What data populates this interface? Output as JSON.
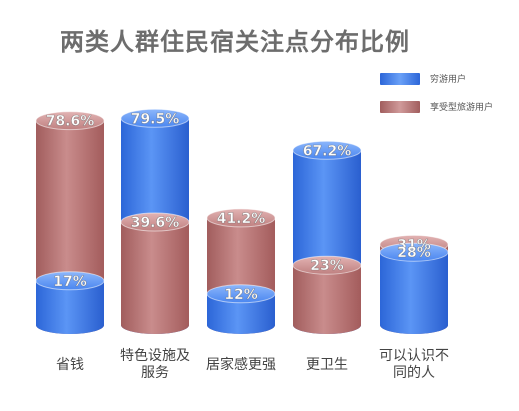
{
  "chart_data": {
    "type": "bar",
    "title": "两类人群住民宿关注点分布比例",
    "categories": [
      "省钱",
      "特色设施及服务",
      "居家感更强",
      "更卫生",
      "可以认识不同的人"
    ],
    "category_lines": [
      [
        "省钱"
      ],
      [
        "特色设施及",
        "服务"
      ],
      [
        "居家感更强"
      ],
      [
        "更卫生"
      ],
      [
        "可以认识不",
        "同的人"
      ]
    ],
    "series": [
      {
        "name": "穷游用户",
        "values": [
          17,
          79.5,
          12,
          67.2,
          28
        ],
        "labels": [
          "17%",
          "79.5%",
          "12%",
          "67.2%",
          "28%"
        ],
        "color": "#3a78ee"
      },
      {
        "name": "享受型旅游用户",
        "values": [
          78.6,
          39.6,
          41.2,
          23,
          31
        ],
        "labels": [
          "78.6%",
          "39.6%",
          "41.2%",
          "23%",
          "31%"
        ],
        "color": "#b87474"
      }
    ],
    "ylim": [
      0,
      100
    ],
    "legend_position": "top-right",
    "grid": false
  }
}
